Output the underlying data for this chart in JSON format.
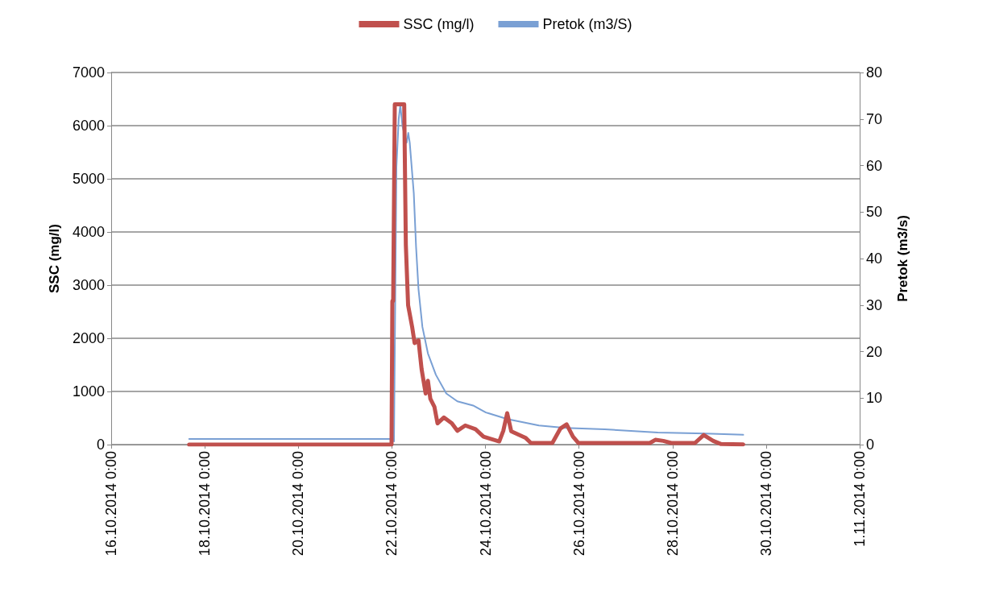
{
  "chart_data": {
    "type": "line",
    "ylabel": "SSC (mg/l)",
    "y2label": "Pretok (m3/s)",
    "xlim": [
      "2014-10-16T00:00",
      "2014-11-01T00:00"
    ],
    "xticks": [
      {
        "value": "2014-10-16T00:00",
        "label": "16.10.2014 0:00"
      },
      {
        "value": "2014-10-18T00:00",
        "label": "18.10.2014 0:00"
      },
      {
        "value": "2014-10-20T00:00",
        "label": "20.10.2014 0:00"
      },
      {
        "value": "2014-10-22T00:00",
        "label": "22.10.2014 0:00"
      },
      {
        "value": "2014-10-24T00:00",
        "label": "24.10.2014 0:00"
      },
      {
        "value": "2014-10-26T00:00",
        "label": "26.10.2014 0:00"
      },
      {
        "value": "2014-10-28T00:00",
        "label": "28.10.2014 0:00"
      },
      {
        "value": "2014-10-30T00:00",
        "label": "30.10.2014 0:00"
      },
      {
        "value": "2014-11-01T00:00",
        "label": "1.11.2014 0:00"
      }
    ],
    "ylim": [
      0,
      7000
    ],
    "yticks": [
      0,
      1000,
      2000,
      3000,
      4000,
      5000,
      6000,
      7000
    ],
    "y2lim": [
      0,
      80
    ],
    "y2ticks": [
      0,
      10,
      20,
      30,
      40,
      50,
      60,
      70,
      80
    ],
    "grid": "y",
    "legend": "top",
    "marker": "none",
    "line_style": "solid",
    "series": [
      {
        "name": "SSC (mg/l)",
        "color": "#c0504d",
        "x": [
          "2014-10-17T16:00",
          "2014-10-21T23:50",
          "2014-10-22T00:15",
          "2014-10-22T00:40",
          "2014-10-22T01:30",
          "2014-10-22T06:20",
          "2014-10-22T07:10",
          "2014-10-22T08:20",
          "2014-10-22T10:25",
          "2014-10-22T11:40",
          "2014-10-22T13:40",
          "2014-10-22T15:15",
          "2014-10-22T17:20",
          "2014-10-22T18:30",
          "2014-10-22T19:45",
          "2014-10-22T21:50",
          "2014-10-22T23:25",
          "2014-10-23T02:40",
          "2014-10-23T06:45",
          "2014-10-23T09:35",
          "2014-10-23T13:40",
          "2014-10-23T18:55",
          "2014-10-23T23:00",
          "2014-10-24T07:05",
          "2014-10-24T09:10",
          "2014-10-24T11:10",
          "2014-10-24T13:15",
          "2014-10-24T20:30",
          "2014-10-24T23:20",
          "2014-10-25T10:20",
          "2014-10-25T14:25",
          "2014-10-25T17:40",
          "2014-10-25T20:55",
          "2014-10-25T23:45",
          "2014-10-27T12:20",
          "2014-10-27T15:10",
          "2014-10-27T19:15",
          "2014-10-27T23:20",
          "2014-10-28T11:30",
          "2014-10-28T16:00",
          "2014-10-28T20:50",
          "2014-10-29T00:55",
          "2014-10-29T12:15"
        ],
        "values": [
          0,
          0,
          2700,
          2700,
          6400,
          6400,
          3760,
          2620,
          2210,
          1910,
          1960,
          1420,
          960,
          1200,
          860,
          710,
          400,
          510,
          400,
          260,
          360,
          290,
          150,
          60,
          260,
          590,
          250,
          130,
          30,
          30,
          300,
          380,
          150,
          30,
          30,
          90,
          70,
          30,
          30,
          180,
          70,
          10,
          5
        ]
      },
      {
        "name": "Pretok (m3/S)",
        "color": "#7aa0d4",
        "axis": "y2",
        "x": [
          "2014-10-17T16:00",
          "2014-10-21T18:00",
          "2014-10-21T23:00",
          "2014-10-22T01:05",
          "2014-10-22T02:20",
          "2014-10-22T03:30",
          "2014-10-22T04:20",
          "2014-10-22T05:30",
          "2014-10-22T07:35",
          "2014-10-22T08:25",
          "2014-10-22T09:10",
          "2014-10-22T11:15",
          "2014-10-22T12:25",
          "2014-10-22T13:40",
          "2014-10-22T15:40",
          "2014-10-22T18:30",
          "2014-10-22T22:35",
          "2014-10-23T03:55",
          "2014-10-23T09:35",
          "2014-10-23T17:40",
          "2014-10-24T00:15",
          "2014-10-24T01:50",
          "2014-10-24T11:10",
          "2014-10-25T03:25",
          "2014-10-25T16:50",
          "2014-10-26T13:10",
          "2014-10-27T16:25",
          "2014-10-28T16:45",
          "2014-10-29T12:15"
        ],
        "values": [
          1.2,
          1.2,
          1.2,
          0.7,
          59.7,
          70,
          73,
          68.3,
          64.9,
          67,
          64.9,
          54,
          42.5,
          33.4,
          25.3,
          19.6,
          15,
          11,
          9.3,
          8.4,
          6.9,
          6.7,
          5.5,
          4.1,
          3.6,
          3.3,
          2.6,
          2.4,
          2.1
        ]
      }
    ]
  }
}
